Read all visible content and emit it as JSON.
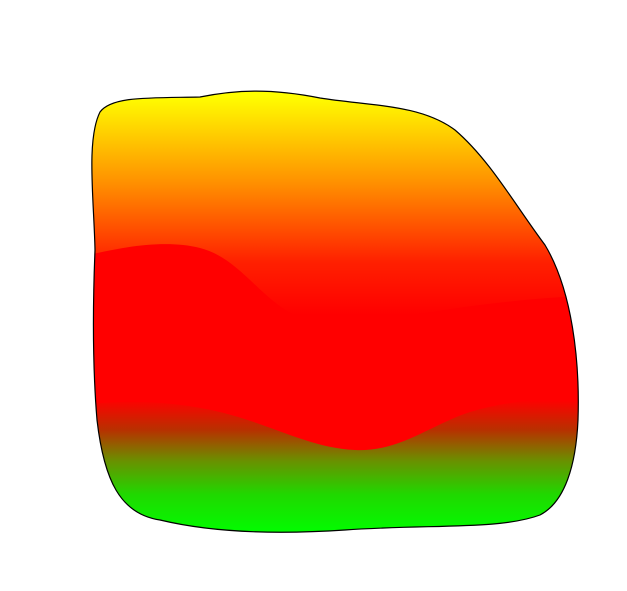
{
  "shape": {
    "kind": "irregular blob with vertical gradient",
    "stroke_color": "#000000",
    "colors": {
      "top": "#ffff00",
      "upper": "#ff8000",
      "middle": "#ff0000",
      "bottom": "#00ff00"
    }
  }
}
